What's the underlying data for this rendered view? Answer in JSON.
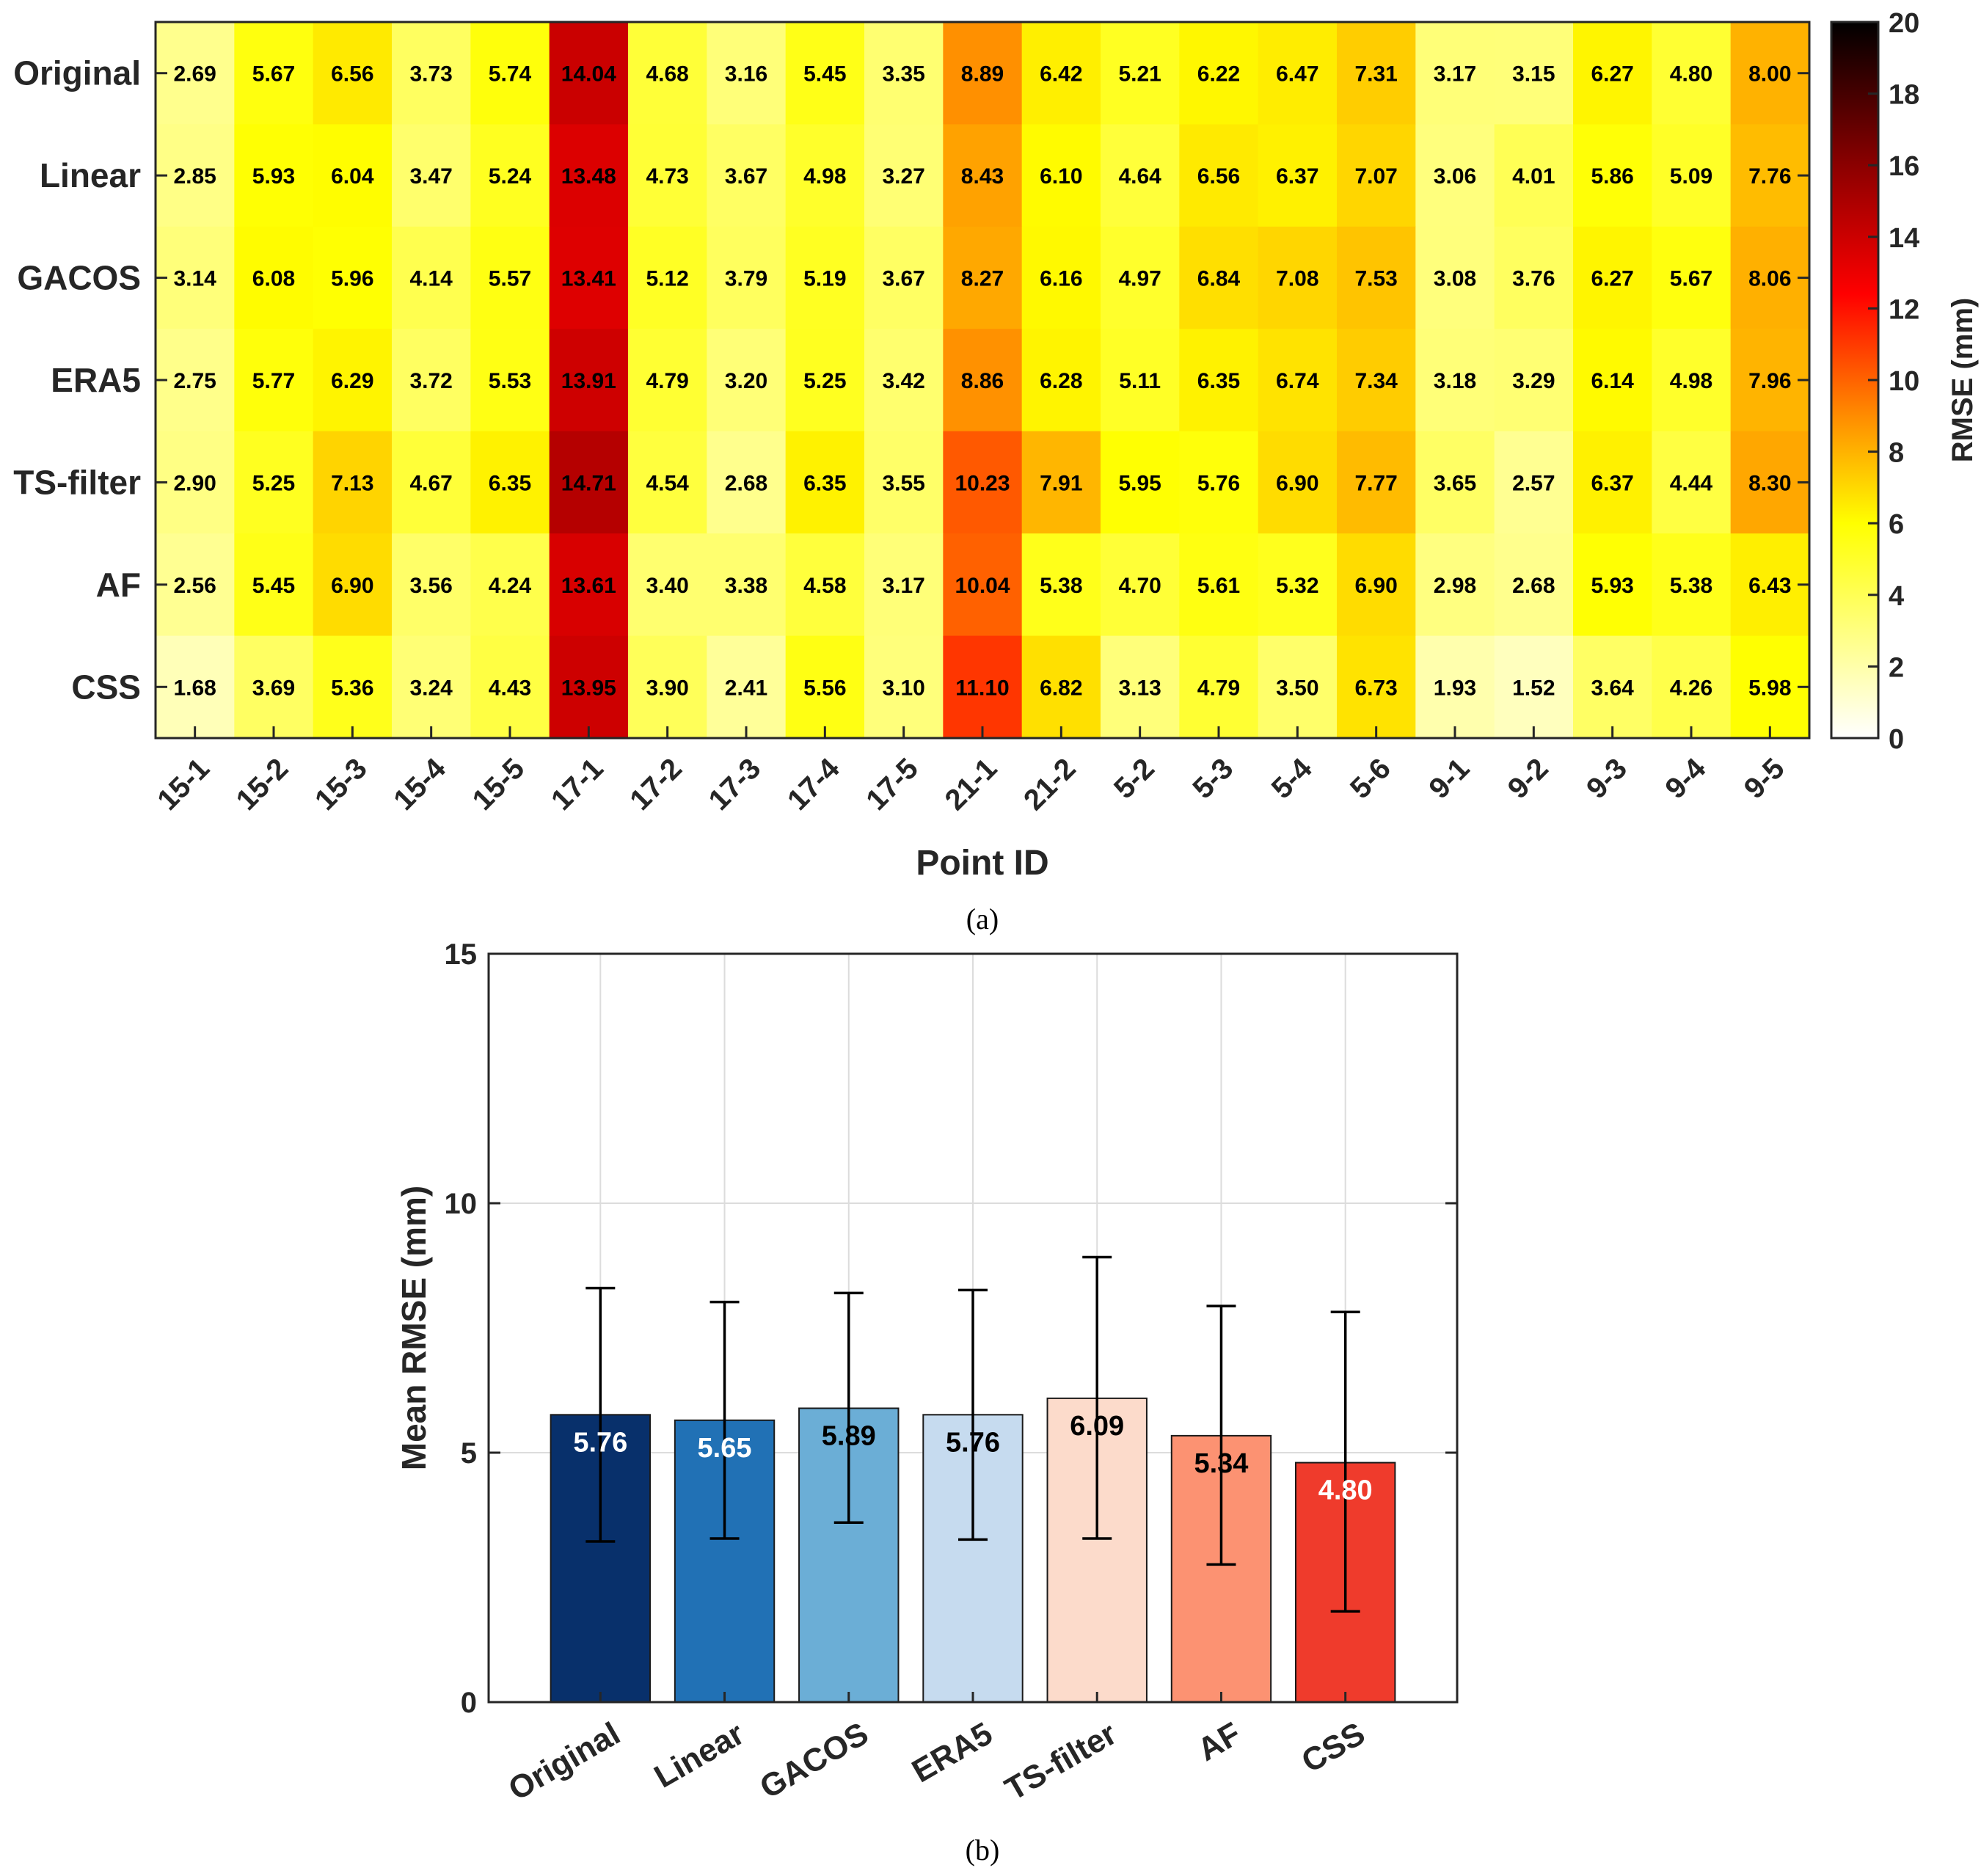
{
  "colors": {
    "background": "#ffffff",
    "axis": "#262626",
    "grid": "#dcdcdc",
    "bar_edge": "#1a1a1a",
    "heat_scale": [
      "#ffffff",
      "#ffff00",
      "#ff8c00",
      "#ff0000",
      "#8b0000",
      "#000000"
    ]
  },
  "chart_data": [
    {
      "type": "heatmap",
      "panel_label": "(a)",
      "xlabel": "Point ID",
      "ylabel": "",
      "colorbar_label": "RMSE (mm)",
      "colorbar_range": [
        0,
        20
      ],
      "colorbar_ticks": [
        "0",
        "2",
        "4",
        "6",
        "8",
        "10",
        "12",
        "14",
        "16",
        "18",
        "20"
      ],
      "rows": [
        "Original",
        "Linear",
        "GACOS",
        "ERA5",
        "TS-filter",
        "AF",
        "CSS"
      ],
      "columns": [
        "15-1",
        "15-2",
        "15-3",
        "15-4",
        "15-5",
        "17-1",
        "17-2",
        "17-3",
        "17-4",
        "17-5",
        "21-1",
        "21-2",
        "5-2",
        "5-3",
        "5-4",
        "5-6",
        "9-1",
        "9-2",
        "9-3",
        "9-4",
        "9-5"
      ],
      "cell_labels": [
        [
          "2.69",
          "5.67",
          "6.56",
          "3.73",
          "5.74",
          "14.04",
          "4.68",
          "3.16",
          "5.45",
          "3.35",
          "8.89",
          "6.42",
          "5.21",
          "6.22",
          "6.47",
          "7.31",
          "3.17",
          "3.15",
          "6.27",
          "4.80",
          "8.00"
        ],
        [
          "2.85",
          "5.93",
          "6.04",
          "3.47",
          "5.24",
          "13.48",
          "4.73",
          "3.67",
          "4.98",
          "3.27",
          "8.43",
          "6.10",
          "4.64",
          "6.56",
          "6.37",
          "7.07",
          "3.06",
          "4.01",
          "5.86",
          "5.09",
          "7.76"
        ],
        [
          "3.14",
          "6.08",
          "5.96",
          "4.14",
          "5.57",
          "13.41",
          "5.12",
          "3.79",
          "5.19",
          "3.67",
          "8.27",
          "6.16",
          "4.97",
          "6.84",
          "7.08",
          "7.53",
          "3.08",
          "3.76",
          "6.27",
          "5.67",
          "8.06"
        ],
        [
          "2.75",
          "5.77",
          "6.29",
          "3.72",
          "5.53",
          "13.91",
          "4.79",
          "3.20",
          "5.25",
          "3.42",
          "8.86",
          "6.28",
          "5.11",
          "6.35",
          "6.74",
          "7.34",
          "3.18",
          "3.29",
          "6.14",
          "4.98",
          "7.96"
        ],
        [
          "2.90",
          "5.25",
          "7.13",
          "4.67",
          "6.35",
          "14.71",
          "4.54",
          "2.68",
          "6.35",
          "3.55",
          "10.23",
          "7.91",
          "5.95",
          "5.76",
          "6.90",
          "7.77",
          "3.65",
          "2.57",
          "6.37",
          "4.44",
          "8.30"
        ],
        [
          "2.56",
          "5.45",
          "6.90",
          "3.56",
          "4.24",
          "13.61",
          "3.40",
          "3.38",
          "4.58",
          "3.17",
          "10.04",
          "5.38",
          "4.70",
          "5.61",
          "5.32",
          "6.90",
          "2.98",
          "2.68",
          "5.93",
          "5.38",
          "6.43"
        ],
        [
          "1.68",
          "3.69",
          "5.36",
          "3.24",
          "4.43",
          "13.95",
          "3.90",
          "2.41",
          "5.56",
          "3.10",
          "11.10",
          "6.82",
          "3.13",
          "4.79",
          "3.50",
          "6.73",
          "1.93",
          "1.52",
          "3.64",
          "4.26",
          "5.98"
        ]
      ]
    },
    {
      "type": "bar",
      "panel_label": "(b)",
      "xlabel": "",
      "ylabel": "Mean RMSE (mm)",
      "ylim": [
        0,
        15
      ],
      "yticks": [
        "0",
        "5",
        "10",
        "15"
      ],
      "grid": true,
      "categories": [
        "Original",
        "Linear",
        "GACOS",
        "ERA5",
        "TS-filter",
        "AF",
        "CSS"
      ],
      "values": [
        5.76,
        5.65,
        5.89,
        5.76,
        6.09,
        5.34,
        4.8
      ],
      "value_labels": [
        "5.76",
        "5.65",
        "5.89",
        "5.76",
        "6.09",
        "5.34",
        "4.80"
      ],
      "error_low": [
        3.22,
        3.28,
        3.6,
        3.26,
        3.28,
        2.76,
        1.82
      ],
      "error_high": [
        8.3,
        8.02,
        8.2,
        8.26,
        8.92,
        7.94,
        7.82
      ],
      "bar_colors": [
        "#08306b",
        "#2171b5",
        "#6baed6",
        "#c6dbef",
        "#fcdbcb",
        "#fc9272",
        "#ef3b2c"
      ],
      "label_colors": [
        "#ffffff",
        "#ffffff",
        "#000000",
        "#000000",
        "#000000",
        "#000000",
        "#ffffff"
      ]
    }
  ]
}
